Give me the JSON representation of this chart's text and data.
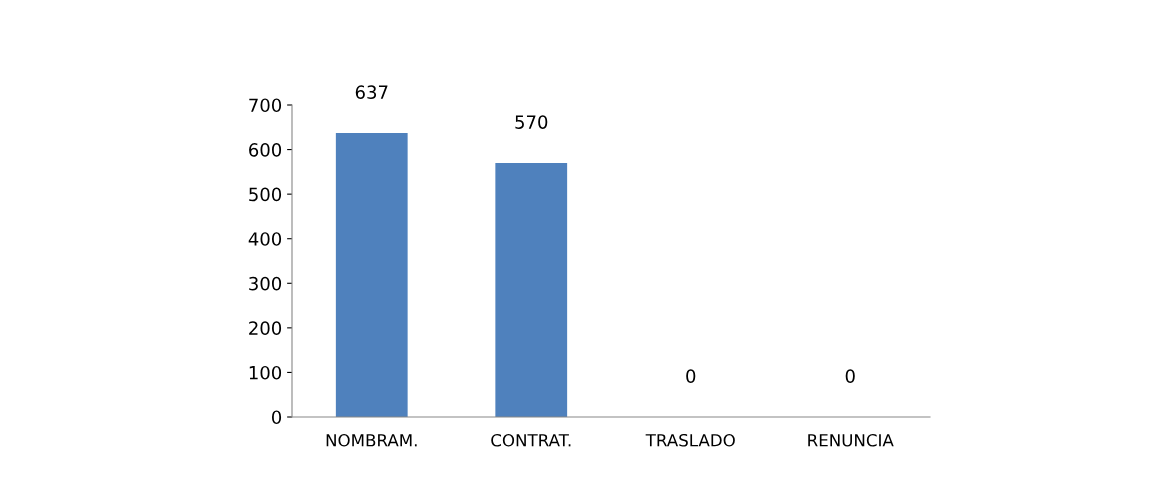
{
  "chart_data": {
    "type": "bar",
    "categories": [
      "NOMBRAM.",
      "CONTRAT.",
      "TRASLADO",
      "RENUNCIA"
    ],
    "values": [
      637,
      570,
      0,
      0
    ],
    "color": "#4f81bd",
    "ylim": [
      0,
      700
    ],
    "yticks": [
      0,
      100,
      200,
      300,
      400,
      500,
      600,
      700
    ],
    "grid": false,
    "data_labels": true
  }
}
